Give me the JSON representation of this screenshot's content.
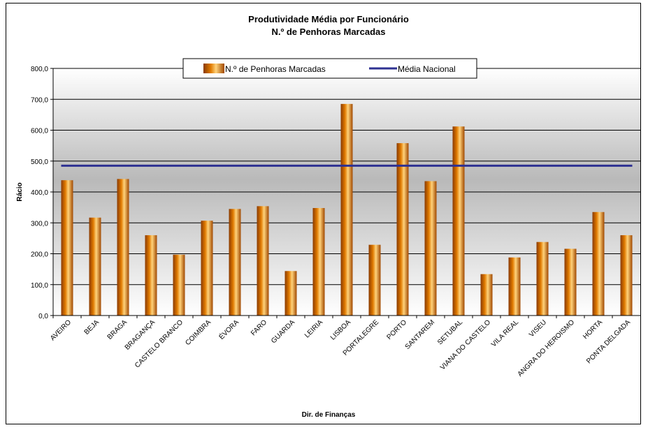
{
  "chart_data": {
    "type": "bar",
    "title": "Produtividade Média por Funcionário",
    "subtitle": "N.º de Penhoras Marcadas",
    "xlabel": "Dir. de Finanças",
    "ylabel": "Rácio",
    "ylim": [
      0,
      800
    ],
    "yticks": [
      "0,0",
      "100,0",
      "200,0",
      "300,0",
      "400,0",
      "500,0",
      "600,0",
      "700,0",
      "800,0"
    ],
    "categories": [
      "AVEIRO",
      "BEJA",
      "BRAGA",
      "BRAGANÇA",
      "CASTELO BRANCO",
      "COIMBRA",
      "ÉVORA",
      "FARO",
      "GUARDA",
      "LEIRIA",
      "LISBOA",
      "PORTALEGRE",
      "PORTO",
      "SANTAREM",
      "SETUBAL",
      "VIANA DO CASTELO",
      "VILA REAL",
      "VISEU",
      "ANGRA DO HEROISMO",
      "HORTA",
      "PONTA DELGADA"
    ],
    "series": [
      {
        "name": "N.º de Penhoras Marcadas",
        "kind": "bar",
        "color": "#E07A00",
        "values": [
          438,
          317,
          442,
          260,
          197,
          307,
          345,
          354,
          144,
          348,
          685,
          229,
          558,
          435,
          612,
          134,
          188,
          238,
          216,
          335,
          260
        ]
      },
      {
        "name": "Média Nacional",
        "kind": "line",
        "color": "#2E3192",
        "value": 485
      }
    ],
    "legend_position": "top"
  }
}
